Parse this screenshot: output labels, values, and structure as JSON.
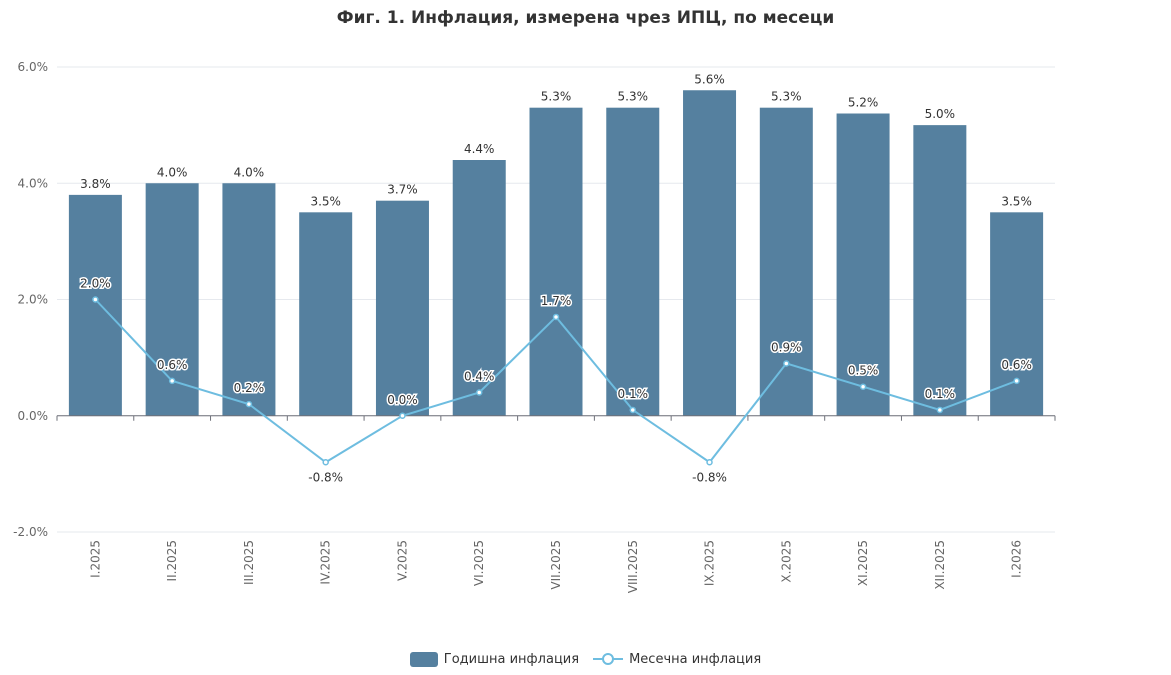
{
  "chart_data": {
    "type": "bar+line",
    "title": "Фиг. 1. Инфлация, измерена чрез ИПЦ, по месеци",
    "categories": [
      "I.2025",
      "II.2025",
      "III.2025",
      "IV.2025",
      "V.2025",
      "VI.2025",
      "VII.2025",
      "VIII.2025",
      "IX.2025",
      "X.2025",
      "XI.2025",
      "XII.2025",
      "I.2026"
    ],
    "series": [
      {
        "name": "Годишна инфлация",
        "type": "bar",
        "color": "#55809f",
        "values": [
          3.8,
          4.0,
          4.0,
          3.5,
          3.7,
          4.4,
          5.3,
          5.3,
          5.6,
          5.3,
          5.2,
          5.0,
          3.5
        ]
      },
      {
        "name": "Месечна инфлация",
        "type": "line",
        "color": "#6ebde0",
        "values": [
          2.0,
          0.6,
          0.2,
          -0.8,
          0.0,
          0.4,
          1.7,
          0.1,
          -0.8,
          0.9,
          0.5,
          0.1,
          0.6
        ]
      }
    ],
    "ylim": [
      -2,
      6
    ],
    "yticks": [
      "-2.0%",
      "0.0%",
      "2.0%",
      "4.0%",
      "6.0%"
    ],
    "ytick_values": [
      -2,
      0,
      2,
      4,
      6
    ],
    "grid": true,
    "legend_position": "bottom"
  }
}
